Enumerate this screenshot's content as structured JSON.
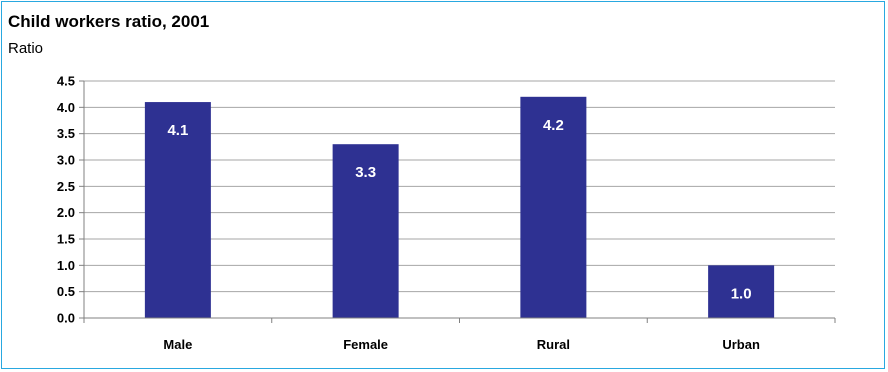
{
  "chart_data": {
    "type": "bar",
    "title": "Child workers ratio, 2001",
    "ylabel": "Ratio",
    "xlabel": "",
    "categories": [
      "Male",
      "Female",
      "Rural",
      "Urban"
    ],
    "values": [
      4.1,
      3.3,
      4.2,
      1.0
    ],
    "data_labels": [
      "4.1",
      "3.3",
      "4.2",
      "1.0"
    ],
    "yticks": [
      "0.0",
      "0.5",
      "1.0",
      "1.5",
      "2.0",
      "2.5",
      "3.0",
      "3.5",
      "4.0",
      "4.5"
    ],
    "ylim": [
      0,
      4.5
    ],
    "grid": true,
    "bar_color": "#2e3192",
    "grid_color": "#a6a6a6"
  }
}
